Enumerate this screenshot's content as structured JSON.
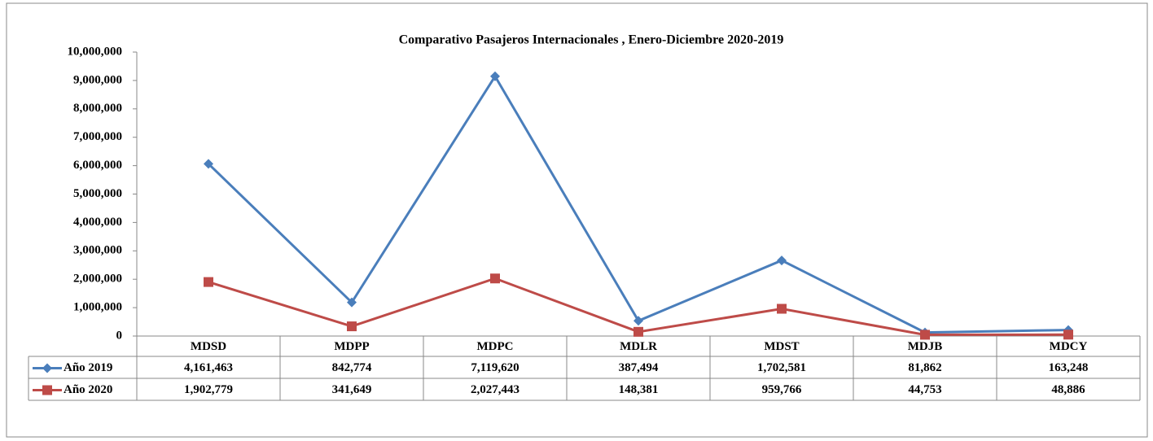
{
  "chart_data": {
    "type": "line",
    "stacked": true,
    "title": "Comparativo Pasajeros Internacionales , Enero-Diciembre 2020-2019",
    "categories": [
      "MDSD",
      "MDPP",
      "MDPC",
      "MDLR",
      "MDST",
      "MDJB",
      "MDCY"
    ],
    "series": [
      {
        "name": "Año 2019",
        "color": "#4a7ebb",
        "marker": "diamond",
        "values": [
          4161463,
          842774,
          7119620,
          387494,
          1702581,
          81862,
          163248
        ],
        "value_labels": [
          "4,161,463",
          "842,774",
          "7,119,620",
          "387,494",
          "1,702,581",
          "81,862",
          "163,248"
        ]
      },
      {
        "name": "Año 2020",
        "color": "#be4b48",
        "marker": "square",
        "values": [
          1902779,
          341649,
          2027443,
          148381,
          959766,
          44753,
          48886
        ],
        "value_labels": [
          "1,902,779",
          "341,649",
          "2,027,443",
          "148,381",
          "959,766",
          "44,753",
          "48,886"
        ]
      }
    ],
    "ylim": [
      0,
      10000000
    ],
    "yticks": [
      0,
      {
        "value": 1000000,
        "label": "1,000,000"
      },
      {
        "value": 2000000,
        "label": "2,000,000"
      },
      {
        "value": 3000000,
        "label": "3,000,000"
      },
      {
        "value": 4000000,
        "label": "4,000,000"
      },
      {
        "value": 5000000,
        "label": "5,000,000"
      },
      {
        "value": 6000000,
        "label": "6,000,000"
      },
      {
        "value": 7000000,
        "label": "7,000,000"
      },
      {
        "value": 8000000,
        "label": "8,000,000"
      },
      {
        "value": 9000000,
        "label": "9,000,000"
      },
      {
        "value": 10000000,
        "label": "10,000,000"
      }
    ],
    "grid": false,
    "data_table": true
  }
}
